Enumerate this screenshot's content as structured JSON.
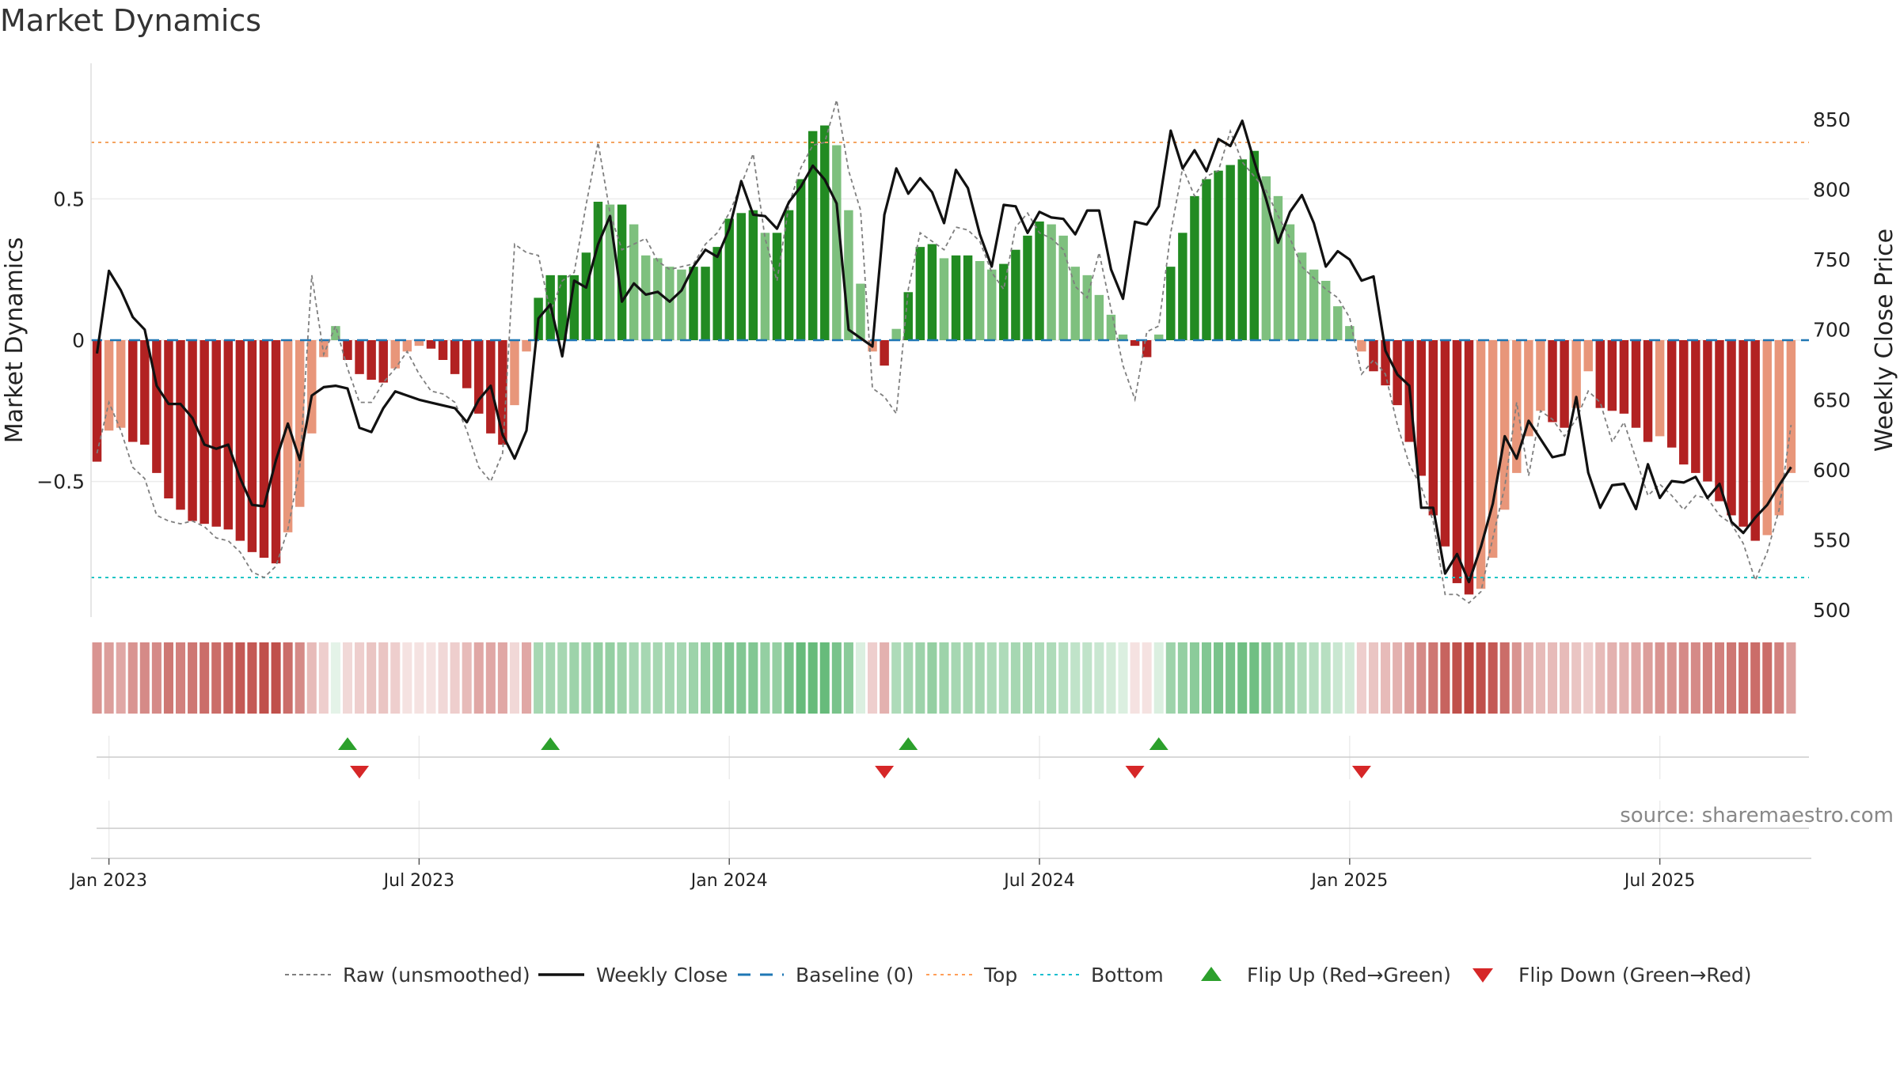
{
  "title": "Market Dynamics",
  "source": "source: sharemaestro.com",
  "chart_data": {
    "type": "bar",
    "y_left_label": "Market Dynamics",
    "y_right_label": "Weekly Close Price",
    "y_left_range": [
      -0.98,
      0.98
    ],
    "y_right_range": [
      495,
      890
    ],
    "y_left_ticks": [
      "−0.5",
      "0",
      "0.5"
    ],
    "y_right_ticks": [
      "500",
      "550",
      "600",
      "650",
      "700",
      "750",
      "800",
      "850"
    ],
    "x_ticks": [
      "Jan 2023",
      "Jul 2023",
      "Jan 2024",
      "Jul 2024",
      "Jan 2025",
      "Jul 2025"
    ],
    "top_level": 0.7,
    "bottom_level": -0.84,
    "baseline": 0,
    "grid": true,
    "legend_position": "bottom-center",
    "weeks": 144,
    "histogram": [
      -0.43,
      -0.32,
      -0.31,
      -0.36,
      -0.37,
      -0.47,
      -0.56,
      -0.6,
      -0.64,
      -0.65,
      -0.66,
      -0.67,
      -0.71,
      -0.75,
      -0.77,
      -0.79,
      -0.68,
      -0.59,
      -0.33,
      -0.06,
      0.05,
      -0.07,
      -0.12,
      -0.14,
      -0.15,
      -0.1,
      -0.04,
      -0.02,
      -0.03,
      -0.07,
      -0.12,
      -0.17,
      -0.26,
      -0.33,
      -0.37,
      -0.23,
      -0.04,
      0.15,
      0.23,
      0.23,
      0.23,
      0.31,
      0.49,
      0.48,
      0.48,
      0.41,
      0.3,
      0.29,
      0.26,
      0.25,
      0.26,
      0.26,
      0.33,
      0.43,
      0.45,
      0.46,
      0.38,
      0.38,
      0.46,
      0.57,
      0.74,
      0.76,
      0.69,
      0.46,
      0.2,
      -0.04,
      -0.09,
      0.04,
      0.17,
      0.33,
      0.34,
      0.29,
      0.3,
      0.3,
      0.28,
      0.25,
      0.27,
      0.32,
      0.37,
      0.42,
      0.41,
      0.37,
      0.26,
      0.23,
      0.16,
      0.09,
      0.02,
      -0.02,
      -0.06,
      0.02,
      0.26,
      0.38,
      0.51,
      0.57,
      0.6,
      0.62,
      0.64,
      0.67,
      0.58,
      0.51,
      0.41,
      0.31,
      0.25,
      0.21,
      0.12,
      0.05,
      -0.04,
      -0.11,
      -0.16,
      -0.23,
      -0.36,
      -0.48,
      -0.62,
      -0.73,
      -0.86,
      -0.9,
      -0.88,
      -0.77,
      -0.6,
      -0.47,
      -0.34,
      -0.25,
      -0.29,
      -0.31,
      -0.24,
      -0.11,
      -0.24,
      -0.25,
      -0.26,
      -0.31,
      -0.36,
      -0.34,
      -0.38,
      -0.44,
      -0.47,
      -0.5,
      -0.57,
      -0.62,
      -0.66,
      -0.71,
      -0.69,
      -0.62,
      -0.47
    ],
    "raw": [
      -0.4,
      -0.22,
      -0.32,
      -0.45,
      -0.49,
      -0.62,
      -0.64,
      -0.65,
      -0.64,
      -0.66,
      -0.7,
      -0.71,
      -0.75,
      -0.82,
      -0.84,
      -0.8,
      -0.67,
      -0.45,
      0.23,
      -0.05,
      0.05,
      -0.1,
      -0.22,
      -0.22,
      -0.15,
      -0.1,
      -0.04,
      -0.12,
      -0.18,
      -0.19,
      -0.22,
      -0.32,
      -0.45,
      -0.5,
      -0.4,
      0.34,
      0.31,
      0.3,
      0.1,
      0.21,
      0.24,
      0.48,
      0.7,
      0.45,
      0.32,
      0.34,
      0.36,
      0.28,
      0.25,
      0.26,
      0.27,
      0.34,
      0.38,
      0.45,
      0.55,
      0.66,
      0.36,
      0.21,
      0.48,
      0.61,
      0.69,
      0.7,
      0.85,
      0.6,
      0.46,
      -0.17,
      -0.2,
      -0.26,
      0.18,
      0.38,
      0.35,
      0.32,
      0.4,
      0.39,
      0.35,
      0.24,
      0.18,
      0.4,
      0.45,
      0.38,
      0.36,
      0.32,
      0.19,
      0.15,
      0.31,
      0.11,
      -0.09,
      -0.21,
      0.03,
      0.05,
      0.38,
      0.61,
      0.51,
      0.58,
      0.6,
      0.74,
      0.63,
      0.58,
      0.53,
      0.44,
      0.36,
      0.26,
      0.22,
      0.18,
      0.15,
      0.08,
      -0.12,
      -0.07,
      -0.12,
      -0.3,
      -0.44,
      -0.52,
      -0.64,
      -0.9,
      -0.9,
      -0.93,
      -0.89,
      -0.7,
      -0.52,
      -0.22,
      -0.48,
      -0.25,
      -0.28,
      -0.34,
      -0.28,
      -0.18,
      -0.22,
      -0.36,
      -0.29,
      -0.42,
      -0.55,
      -0.51,
      -0.55,
      -0.6,
      -0.55,
      -0.56,
      -0.62,
      -0.65,
      -0.72,
      -0.85,
      -0.75,
      -0.6,
      -0.3
    ],
    "close": [
      683,
      742,
      728,
      709,
      700,
      660,
      647,
      647,
      637,
      618,
      615,
      618,
      594,
      575,
      574,
      607,
      633,
      607,
      653,
      659,
      660,
      658,
      630,
      627,
      644,
      656,
      653,
      650,
      648,
      646,
      644,
      634,
      650,
      660,
      625,
      608,
      628,
      708,
      718,
      681,
      735,
      730,
      761,
      781,
      720,
      733,
      725,
      727,
      720,
      728,
      745,
      757,
      752,
      772,
      806,
      782,
      781,
      772,
      791,
      802,
      817,
      807,
      790,
      700,
      694,
      688,
      782,
      815,
      797,
      808,
      798,
      776,
      814,
      801,
      768,
      745,
      789,
      788,
      769,
      784,
      780,
      779,
      768,
      785,
      785,
      743,
      722,
      777,
      775,
      788,
      842,
      815,
      828,
      813,
      836,
      831,
      849,
      820,
      793,
      762,
      784,
      796,
      776,
      745,
      756,
      750,
      735,
      738,
      685,
      668,
      660,
      573,
      573,
      526,
      540,
      520,
      545,
      576,
      624,
      608,
      635,
      622,
      609,
      611,
      652,
      598,
      573,
      589,
      590,
      572,
      604,
      580,
      592,
      591,
      595,
      580,
      590,
      563,
      555,
      566,
      575,
      589,
      602
    ],
    "regime_strength": [
      0.55,
      0.5,
      0.45,
      0.55,
      0.6,
      0.6,
      0.7,
      0.65,
      0.7,
      0.75,
      0.75,
      0.8,
      0.85,
      0.85,
      0.9,
      0.9,
      0.75,
      0.6,
      0.35,
      0.25,
      0.15,
      0.2,
      0.25,
      0.3,
      0.3,
      0.25,
      0.15,
      0.15,
      0.15,
      0.2,
      0.25,
      0.35,
      0.45,
      0.45,
      0.45,
      0.2,
      0.45,
      0.5,
      0.5,
      0.5,
      0.55,
      0.55,
      0.6,
      0.6,
      0.55,
      0.5,
      0.5,
      0.5,
      0.5,
      0.5,
      0.55,
      0.6,
      0.65,
      0.7,
      0.7,
      0.7,
      0.6,
      0.6,
      0.75,
      0.85,
      0.85,
      0.85,
      0.75,
      0.65,
      0.2,
      0.25,
      0.4,
      0.45,
      0.5,
      0.55,
      0.6,
      0.55,
      0.5,
      0.5,
      0.5,
      0.45,
      0.45,
      0.5,
      0.5,
      0.45,
      0.45,
      0.4,
      0.35,
      0.35,
      0.3,
      0.25,
      0.2,
      0.15,
      0.15,
      0.2,
      0.55,
      0.6,
      0.65,
      0.7,
      0.75,
      0.75,
      0.8,
      0.8,
      0.7,
      0.6,
      0.55,
      0.45,
      0.4,
      0.4,
      0.3,
      0.25,
      0.25,
      0.3,
      0.35,
      0.4,
      0.5,
      0.6,
      0.7,
      0.8,
      0.9,
      0.95,
      0.9,
      0.85,
      0.75,
      0.55,
      0.4,
      0.35,
      0.35,
      0.35,
      0.3,
      0.25,
      0.35,
      0.4,
      0.4,
      0.45,
      0.5,
      0.55,
      0.55,
      0.6,
      0.6,
      0.65,
      0.65,
      0.7,
      0.75,
      0.75,
      0.75,
      0.65,
      0.5,
      0.4
    ],
    "flip_up_weeks": [
      21,
      38,
      68,
      89
    ],
    "flip_down_weeks": [
      22,
      66,
      87,
      106
    ],
    "legend": [
      {
        "key": "raw",
        "label": "Raw (unsmoothed)",
        "color": "#7f7f7f"
      },
      {
        "key": "close",
        "label": "Weekly Close",
        "color": "#111111"
      },
      {
        "key": "baseline",
        "label": "Baseline (0)",
        "color": "#1f77b4"
      },
      {
        "key": "top",
        "label": "Top",
        "color": "#ff9f59"
      },
      {
        "key": "bottom",
        "label": "Bottom",
        "color": "#17becf"
      },
      {
        "key": "flipup",
        "label": "Flip Up (Red→Green)",
        "color": "#2ca02c"
      },
      {
        "key": "flipdown",
        "label": "Flip Down (Green→Red)",
        "color": "#d62728"
      }
    ],
    "colors": {
      "green_strong": "#228b22",
      "green_light": "#7ec07e",
      "red_strong": "#b22222",
      "red_light": "#e8967a",
      "top_line": "#f4a460",
      "bottom_line": "#20c5c5",
      "baseline": "#1f77b4"
    }
  }
}
